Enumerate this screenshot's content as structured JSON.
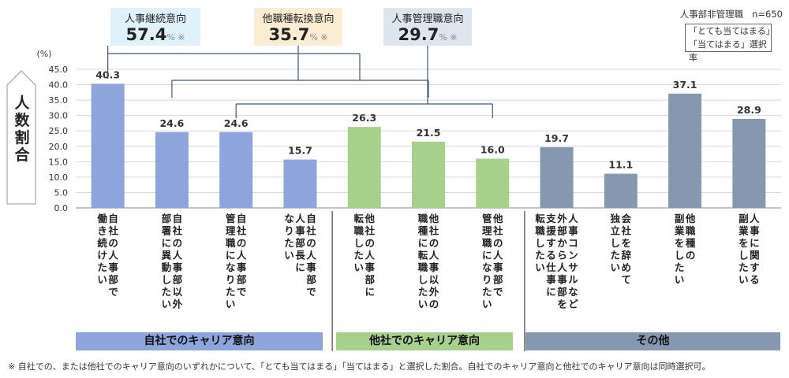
{
  "top_right": {
    "group": "人事部非管理職",
    "n": "n=650"
  },
  "legend_note": [
    "「とても当てはまる」",
    "「当てはまる」選択率"
  ],
  "callouts": [
    {
      "title": "人事継続意向",
      "value": "57.4",
      "unit": "%",
      "mark": "※",
      "color": "#dff1fb"
    },
    {
      "title": "他職種転換意向",
      "value": "35.7",
      "unit": "%",
      "mark": "※",
      "color": "#fbedd3"
    },
    {
      "title": "人事管理職意向",
      "value": "29.7",
      "unit": "%",
      "mark": "※",
      "color": "#dde6ef"
    }
  ],
  "ylabel": "人数割合",
  "yunit": "(%)",
  "groups": [
    {
      "label": "自社でのキャリア意向",
      "color": "#8da5da"
    },
    {
      "label": "他社でのキャリア意向",
      "color": "#a8d08d"
    },
    {
      "label": "その他",
      "color": "#8697b0"
    }
  ],
  "footnote": "※ 自社での、または他社でのキャリア意向のいずれかについて、「とても当てはまる」「当てはまる」と選択した割合。自社でのキャリア意向と他社でのキャリア意向は同時選択可。",
  "chart_data": {
    "type": "bar",
    "ylim": [
      0,
      45
    ],
    "yticks": [
      "0.0",
      "5.0",
      "10.0",
      "15.0",
      "20.0",
      "25.0",
      "30.0",
      "35.0",
      "40.0",
      "45.0"
    ],
    "categories": [
      [
        "自社の人事部で",
        "働き続けたい"
      ],
      [
        "自社の人事部以外",
        "部署に異動したい"
      ],
      [
        "自社の人事部で",
        "管理職になりたい"
      ],
      [
        "自社の人事部で",
        "人事部長に",
        "なりたい"
      ],
      [
        "他社の人事部に",
        "転職したい"
      ],
      [
        "他社の人事以外の",
        "職種に転職したい"
      ],
      [
        "他社の人事部で",
        "管理職になりたい"
      ],
      [
        "人事コンサルなど",
        "外部から人事部を",
        "支援する仕事に",
        "転職したい"
      ],
      [
        "会社を辞めて",
        "独立したい"
      ],
      [
        "他職種の",
        "副業をしたい"
      ],
      [
        "人事に関する",
        "副業をしたい"
      ]
    ],
    "values": [
      40.3,
      24.6,
      24.6,
      15.7,
      26.3,
      21.5,
      16.0,
      19.7,
      11.1,
      37.1,
      28.9
    ],
    "value_labels": [
      "40.3",
      "24.6",
      "24.6",
      "15.7",
      "26.3",
      "21.5",
      "16.0",
      "19.7",
      "11.1",
      "37.1",
      "28.9"
    ],
    "bar_group": [
      0,
      0,
      0,
      0,
      1,
      1,
      1,
      2,
      2,
      2,
      2
    ]
  }
}
